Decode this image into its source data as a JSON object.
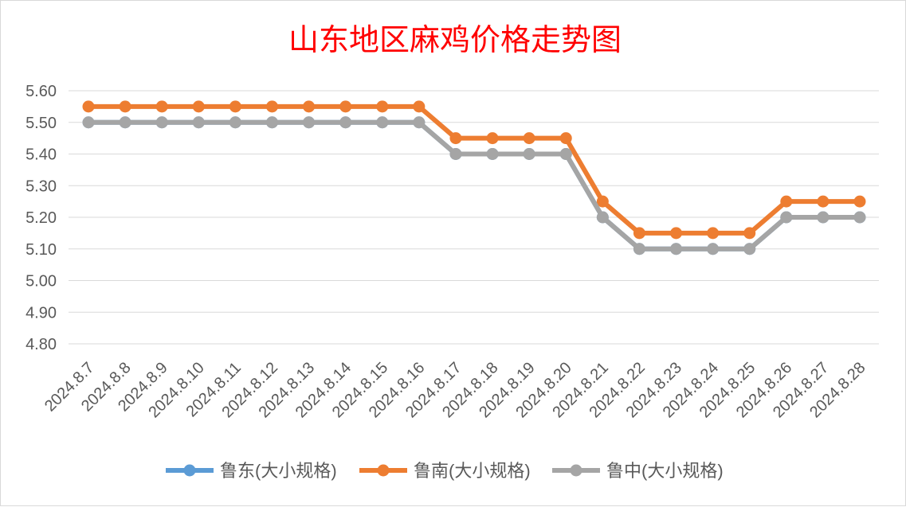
{
  "chart_data": {
    "type": "line",
    "title": "山东地区麻鸡价格走势图",
    "xlabel": "",
    "ylabel": "",
    "categories": [
      "2024.8.7",
      "2024.8.8",
      "2024.8.9",
      "2024.8.10",
      "2024.8.11",
      "2024.8.12",
      "2024.8.13",
      "2024.8.14",
      "2024.8.15",
      "2024.8.16",
      "2024.8.17",
      "2024.8.18",
      "2024.8.19",
      "2024.8.20",
      "2024.8.21",
      "2024.8.22",
      "2024.8.23",
      "2024.8.24",
      "2024.8.25",
      "2024.8.26",
      "2024.8.27",
      "2024.8.28"
    ],
    "ylim": [
      4.8,
      5.6
    ],
    "yticks": [
      "4.80",
      "4.90",
      "5.00",
      "5.10",
      "5.20",
      "5.30",
      "5.40",
      "5.50",
      "5.60"
    ],
    "grid": true,
    "legend_position": "bottom",
    "series": [
      {
        "name": "鲁东(大小规格)",
        "color": "#5b9bd5",
        "values": [
          5.5,
          5.5,
          5.5,
          5.5,
          5.5,
          5.5,
          5.5,
          5.5,
          5.5,
          5.5,
          5.4,
          5.4,
          5.4,
          5.4,
          5.2,
          5.1,
          5.1,
          5.1,
          5.1,
          5.2,
          5.2,
          5.2
        ]
      },
      {
        "name": "鲁南(大小规格)",
        "color": "#ed7d31",
        "values": [
          5.55,
          5.55,
          5.55,
          5.55,
          5.55,
          5.55,
          5.55,
          5.55,
          5.55,
          5.55,
          5.45,
          5.45,
          5.45,
          5.45,
          5.25,
          5.15,
          5.15,
          5.15,
          5.15,
          5.25,
          5.25,
          5.25
        ]
      },
      {
        "name": "鲁中(大小规格)",
        "color": "#a5a5a5",
        "values": [
          5.5,
          5.5,
          5.5,
          5.5,
          5.5,
          5.5,
          5.5,
          5.5,
          5.5,
          5.5,
          5.4,
          5.4,
          5.4,
          5.4,
          5.2,
          5.1,
          5.1,
          5.1,
          5.1,
          5.2,
          5.2,
          5.2
        ]
      }
    ]
  }
}
